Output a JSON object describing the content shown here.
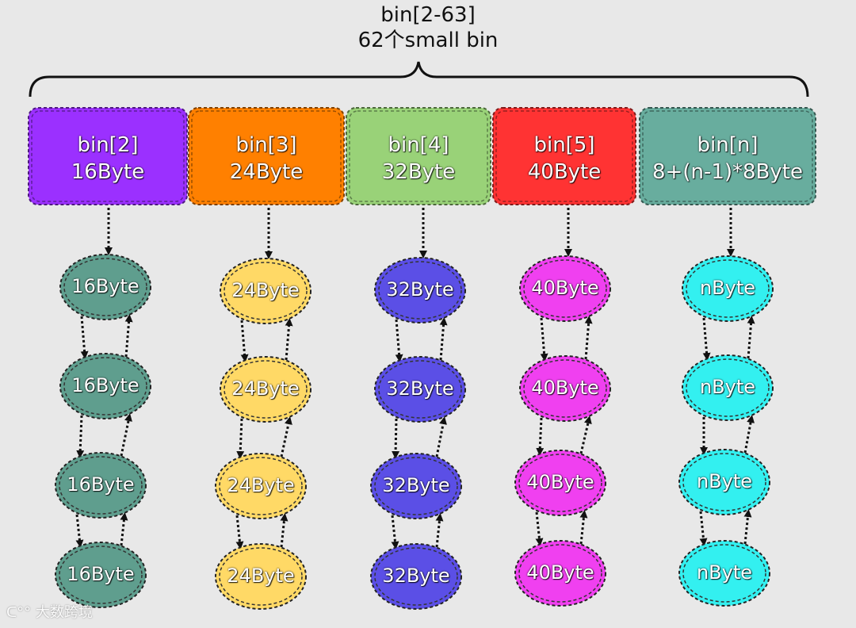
{
  "header": {
    "title_line1": "bin[2-63]",
    "title_line2": "62个small bin"
  },
  "bins": [
    {
      "name": "bin[2]",
      "size": "16Byte",
      "box_color": "#9b30ff",
      "node_color": "#5f9e8e",
      "nodes": [
        "16Byte",
        "16Byte",
        "16Byte",
        "16Byte"
      ]
    },
    {
      "name": "bin[3]",
      "size": "24Byte",
      "box_color": "#ff8000",
      "node_color": "#ffd966",
      "nodes": [
        "24Byte",
        "24Byte",
        "24Byte",
        "24Byte"
      ]
    },
    {
      "name": "bin[4]",
      "size": "32Byte",
      "box_color": "#99d278",
      "node_color": "#5b4fe6",
      "nodes": [
        "32Byte",
        "32Byte",
        "32Byte",
        "32Byte"
      ]
    },
    {
      "name": "bin[5]",
      "size": "40Byte",
      "box_color": "#ff3333",
      "node_color": "#f040f0",
      "nodes": [
        "40Byte",
        "40Byte",
        "40Byte",
        "40Byte"
      ]
    },
    {
      "name": "bin[n]",
      "size": "8+(n-1)*8Byte",
      "box_color": "#68ad9e",
      "node_color": "#33f0f0",
      "nodes": [
        "nByte",
        "nByte",
        "nByte",
        "nByte"
      ]
    }
  ],
  "watermark": {
    "text": "大数跨境"
  }
}
